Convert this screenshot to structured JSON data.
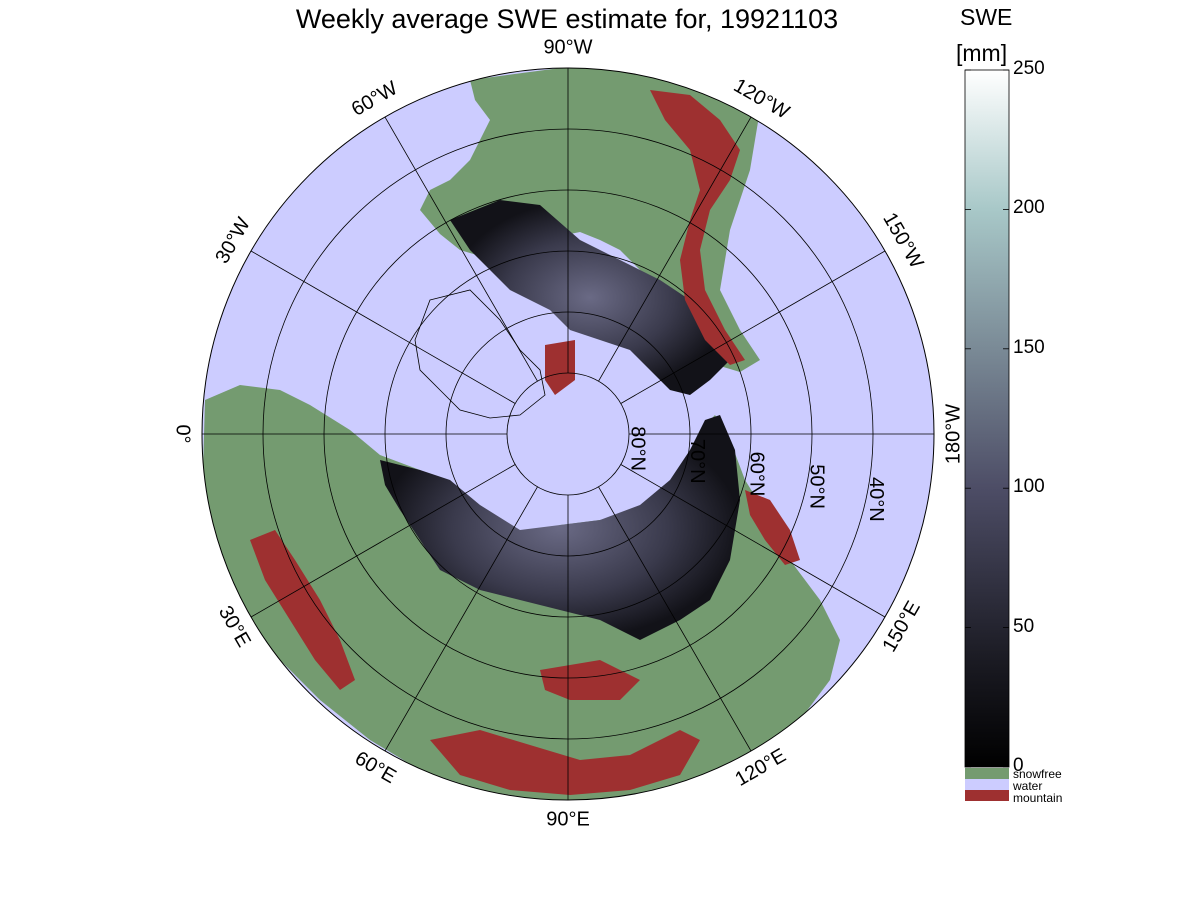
{
  "title": "Weekly average SWE estimate for, 19921103",
  "colors": {
    "water": "#ccccff",
    "snowfree": "#749b70",
    "mountain": "#9e3030",
    "snow_low": "#0b0a10",
    "snow_mid": "#4a4a60",
    "snow_high": "#8aa6a6",
    "snow_max": "#ffffff"
  },
  "longitude_labels": [
    {
      "text": "90°W",
      "lon": -90
    },
    {
      "text": "120°W",
      "lon": -120
    },
    {
      "text": "150°W",
      "lon": -150
    },
    {
      "text": "180°W",
      "lon": 180
    },
    {
      "text": "150°E",
      "lon": 150
    },
    {
      "text": "120°E",
      "lon": 120
    },
    {
      "text": "90°E",
      "lon": 90
    },
    {
      "text": "60°E",
      "lon": 60
    },
    {
      "text": "30°E",
      "lon": 30
    },
    {
      "text": "0°",
      "lon": 0
    },
    {
      "text": "30°W",
      "lon": -30
    },
    {
      "text": "60°W",
      "lon": -60
    }
  ],
  "latitude_labels": [
    {
      "text": "80°N",
      "lat": 80
    },
    {
      "text": "70°N",
      "lat": 70
    },
    {
      "text": "60°N",
      "lat": 60
    },
    {
      "text": "50°N",
      "lat": 50
    },
    {
      "text": "40°N",
      "lat": 40
    }
  ],
  "colorbar": {
    "label_line1": "SWE",
    "label_line2": "[mm]",
    "min": 0,
    "max": 250,
    "ticks": [
      "0",
      "50",
      "100",
      "150",
      "200",
      "250"
    ],
    "tick_values": [
      0,
      50,
      100,
      150,
      200,
      250
    ]
  },
  "legend": [
    {
      "label": "snowfree",
      "color": "#749b70"
    },
    {
      "label": "water",
      "color": "#ccccff"
    },
    {
      "label": "mountain",
      "color": "#9e3030"
    }
  ]
}
